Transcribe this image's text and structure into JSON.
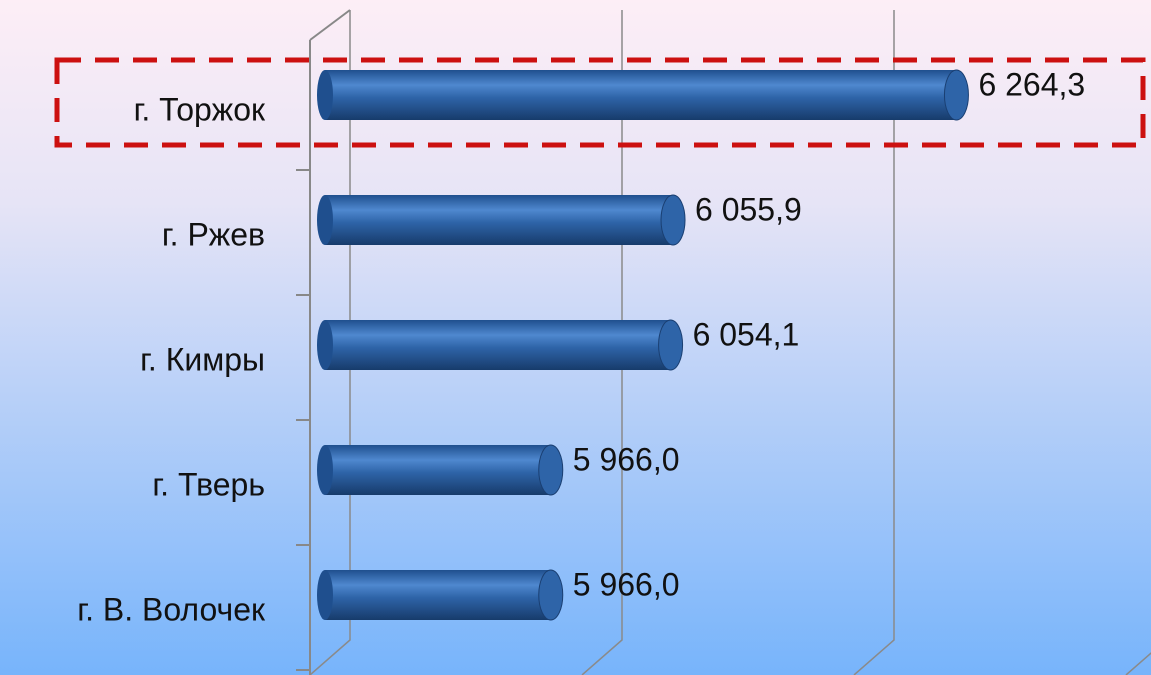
{
  "chart_data": {
    "type": "bar",
    "orientation": "horizontal",
    "categories": [
      "г. Торжок",
      "г. Ржев",
      "г. Кимры",
      "г. Тверь",
      "г. В. Волочек"
    ],
    "values": [
      6264.3,
      6055.9,
      6054.1,
      5966.0,
      5966.0
    ],
    "value_labels": [
      "6 264,3",
      "6 055,9",
      "6 054,1",
      "5 966,0",
      "5 966,0"
    ],
    "color": "#2e64a8",
    "xlim": [
      5800,
      6400
    ],
    "xticks": [
      5800,
      6000,
      6200,
      6400
    ],
    "grid": true
  }
}
